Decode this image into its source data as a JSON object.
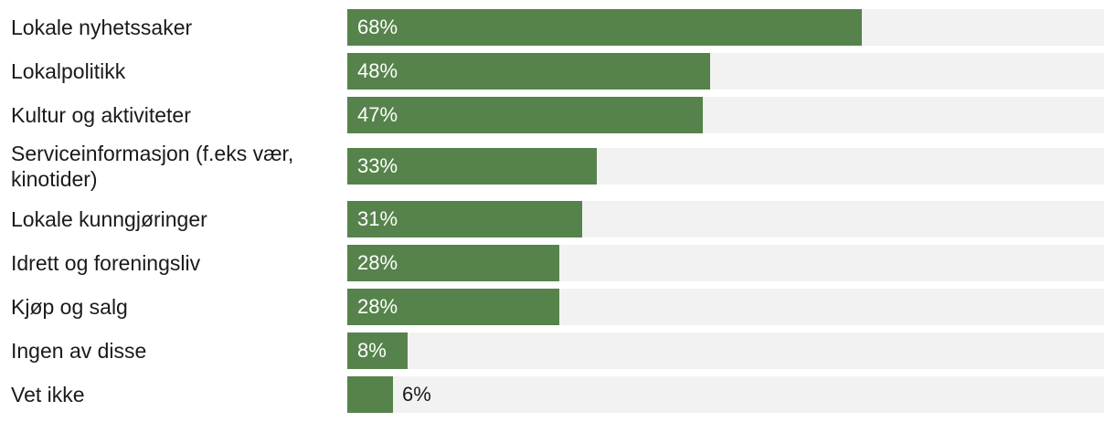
{
  "colors": {
    "bar": "#56834b",
    "track": "#f2f2f2",
    "label_inside": "#ffffff",
    "label_outside": "#1a1a1a"
  },
  "chart_data": {
    "type": "bar",
    "orientation": "horizontal",
    "xlim": [
      0,
      100
    ],
    "grid": false,
    "categories": [
      "Lokale nyhetssaker",
      "Lokalpolitikk",
      "Kultur og aktiviteter",
      "Serviceinformasjon (f.eks vær, kinotider)",
      "Lokale kunngjøringer",
      "Idrett og foreningsliv",
      "Kjøp og salg",
      "Ingen av disse",
      "Vet ikke"
    ],
    "values": [
      68,
      48,
      47,
      33,
      31,
      28,
      28,
      8,
      6
    ],
    "value_labels": [
      "68%",
      "48%",
      "47%",
      "33%",
      "31%",
      "28%",
      "28%",
      "8%",
      "6%"
    ]
  }
}
